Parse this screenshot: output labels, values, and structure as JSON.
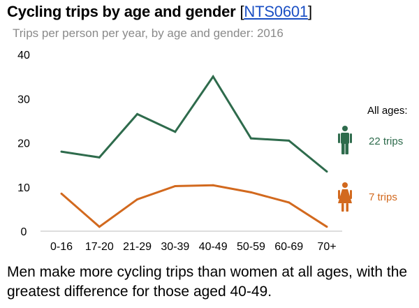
{
  "header": {
    "title": "Cycling trips by age and gender",
    "ref_open": "[",
    "ref_link": "NTS0601",
    "ref_close": "]",
    "subtitle": "Trips per person per year, by age and gender: 2016"
  },
  "chart_data": {
    "type": "line",
    "categories": [
      "0-16",
      "17-20",
      "21-29",
      "30-39",
      "40-49",
      "50-59",
      "60-69",
      "70+"
    ],
    "ylim": [
      0,
      40
    ],
    "yticks": [
      "0",
      "10",
      "20",
      "30",
      "40"
    ],
    "grid": false,
    "series": [
      {
        "key": "men",
        "color": "#2e6b4c",
        "values": [
          18,
          16.7,
          26.5,
          22.5,
          35,
          21,
          20.5,
          13.5
        ]
      },
      {
        "key": "women",
        "color": "#d2691e",
        "values": [
          8.5,
          1,
          7.2,
          10.2,
          10.4,
          8.8,
          6.5,
          1
        ]
      }
    ]
  },
  "legend": {
    "heading": "All ages:",
    "men_label": "22 trips",
    "women_label": "7 trips",
    "men_icon": "man-icon",
    "women_icon": "woman-icon"
  },
  "caption": "Men make more cycling trips than women at all ages, with the greatest difference for those aged 40-49."
}
